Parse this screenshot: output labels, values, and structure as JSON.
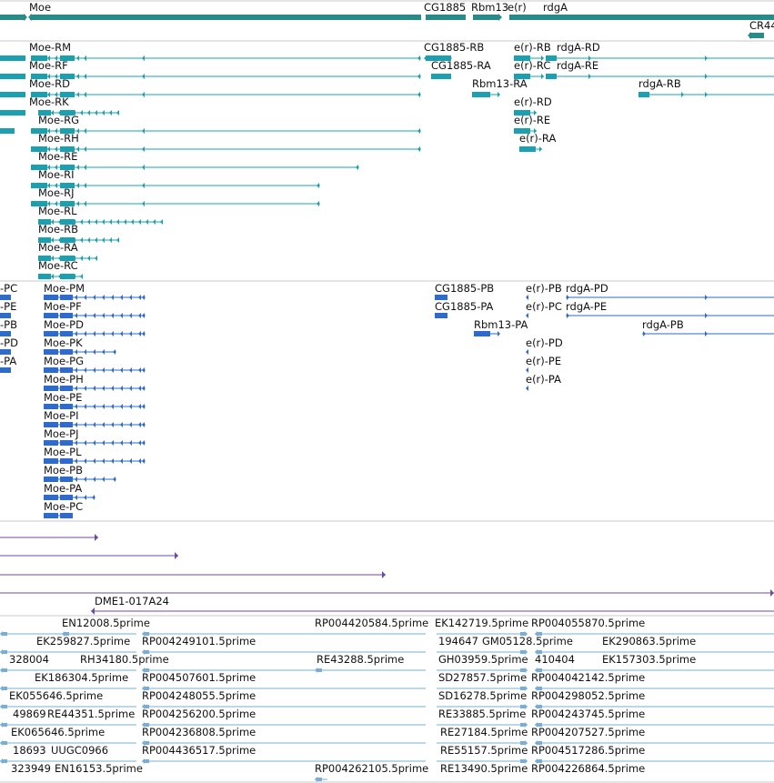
{
  "colors": {
    "gene": "#2a8a88",
    "transcript": "#1aa0b0",
    "protein": "#2f6bc9",
    "rna": "#6f4aa6",
    "est": "#79aed6",
    "separator": "#c8c8c8"
  },
  "tracks": {
    "genes": [
      "Moe",
      "CG1885",
      "Rbm13",
      "e(r)",
      "rdgA",
      "CR44"
    ],
    "transcripts": [
      "Moe-RM",
      "Moe-RF",
      "Moe-RD",
      "Moe-RK",
      "Moe-RG",
      "Moe-RH",
      "Moe-RE",
      "Moe-RI",
      "Moe-RJ",
      "Moe-RL",
      "Moe-RB",
      "Moe-RA",
      "Moe-RC",
      "CG1885-RB",
      "CG1885-RA",
      "Rbm13-RA",
      "e(r)-RB",
      "e(r)-RC",
      "e(r)-RD",
      "e(r)-RE",
      "e(r)-RA",
      "rdgA-RD",
      "rdgA-RE",
      "rdgA-RB"
    ],
    "proteins_left": [
      "-PC",
      "-PE",
      "-PB",
      "-PD",
      "-PA"
    ],
    "proteins": [
      "Moe-PM",
      "Moe-PF",
      "Moe-PD",
      "Moe-PK",
      "Moe-PG",
      "Moe-PH",
      "Moe-PE",
      "Moe-PI",
      "Moe-PJ",
      "Moe-PL",
      "Moe-PB",
      "Moe-PA",
      "Moe-PC",
      "CG1885-PB",
      "CG1885-PA",
      "Rbm13-PA",
      "e(r)-PB",
      "e(r)-PC",
      "e(r)-PD",
      "e(r)-PE",
      "e(r)-PA",
      "rdgA-PD",
      "rdgA-PE",
      "rdgA-PB"
    ],
    "rna": [
      "DME1-017A24"
    ],
    "ests": [
      "EN12008.5prime",
      "RP004420584.5prime",
      "EK142719.5prime",
      "RP004055870.5prime",
      "EK259827.5prime",
      "RP004249101.5prime",
      "194647",
      "GM05128.5prime",
      "EK290863.5prime",
      "328004",
      "RH34180.5prime",
      "RE43288.5prime",
      "GH03959.5prime",
      "410404",
      "EK157303.5prime",
      "EK186304.5prime",
      "RP004507601.5prime",
      "SD27857.5prime",
      "RP004042142.5prime",
      "EK055646.5prime",
      "RP004248055.5prime",
      "SD16278.5prime",
      "RP004298052.5prime",
      "49869",
      "RE44351.5prime",
      "RP004256200.5prime",
      "RE33885.5prime",
      "RP004243745.5prime",
      "EK065646.5prime",
      "RP004236808.5prime",
      "RE27184.5prime",
      "RP004207527.5prime",
      "18693",
      "UUGC0966",
      "RP004436517.5prime",
      "RE55157.5prime",
      "RP004517286.5prime",
      "323949",
      "EN16153.5prime",
      "RP004262105.5prime",
      "RE13490.5prime",
      "RP004226864.5prime"
    ]
  }
}
